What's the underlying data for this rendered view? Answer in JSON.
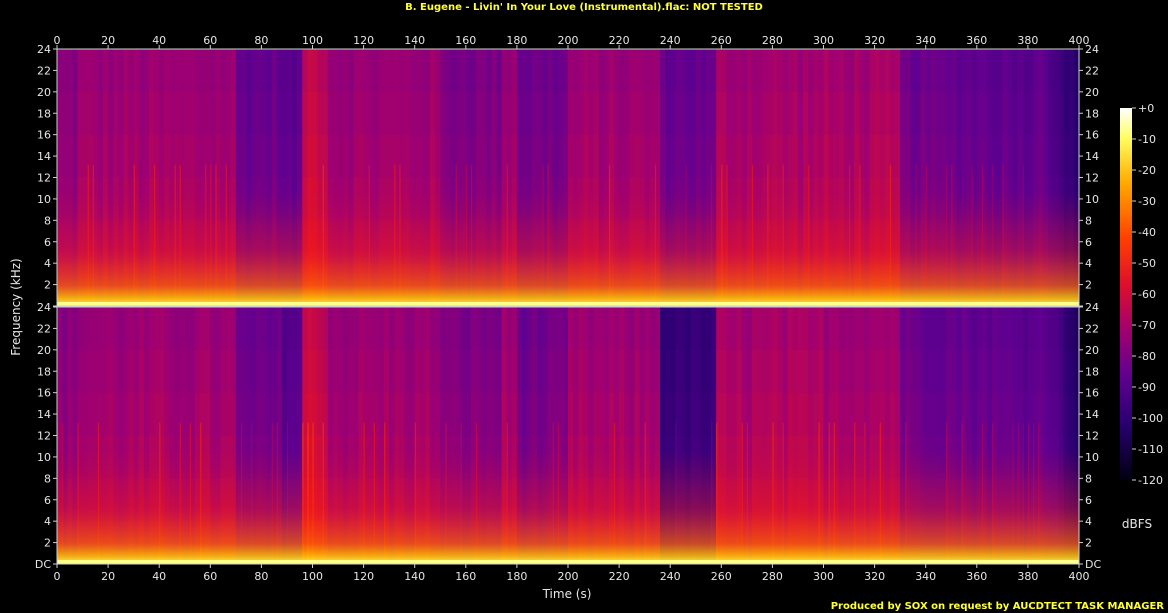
{
  "title": "B. Eugene - Livin' In Your Love (Instrumental).flac: NOT TESTED",
  "footer": "Produced by SOX on request by AUCDTECT TASK MANAGER",
  "chart_data": {
    "type": "heatmap",
    "title": "B. Eugene - Livin' In Your Love (Instrumental).flac: NOT TESTED",
    "xlabel": "Time (s)",
    "ylabel": "Frequency (kHz)",
    "xlim": [
      0,
      400
    ],
    "ylim": [
      0,
      24
    ],
    "x_ticks": [
      "0",
      "20",
      "40",
      "60",
      "80",
      "100",
      "120",
      "140",
      "160",
      "180",
      "200",
      "220",
      "240",
      "260",
      "280",
      "300",
      "320",
      "340",
      "360",
      "380",
      "400"
    ],
    "y_ticks": [
      "DC",
      "2",
      "4",
      "6",
      "8",
      "10",
      "12",
      "14",
      "16",
      "18",
      "20",
      "22",
      "24"
    ],
    "channels": 2,
    "colorbar": {
      "label": "dBFS",
      "range": [
        -120,
        0
      ],
      "ticks": [
        "+0",
        "-10",
        "-20",
        "-30",
        "-40",
        "-50",
        "-60",
        "-70",
        "-80",
        "-90",
        "-100",
        "-110",
        "-120"
      ]
    },
    "colors": {
      "hot": "#ffffe0",
      "yellow": "#ffcc00",
      "orange": "#ff6600",
      "red": "#e0102a",
      "magenta": "#a00080",
      "purple": "#500090",
      "navy": "#1a0060",
      "black": "#000000"
    }
  }
}
